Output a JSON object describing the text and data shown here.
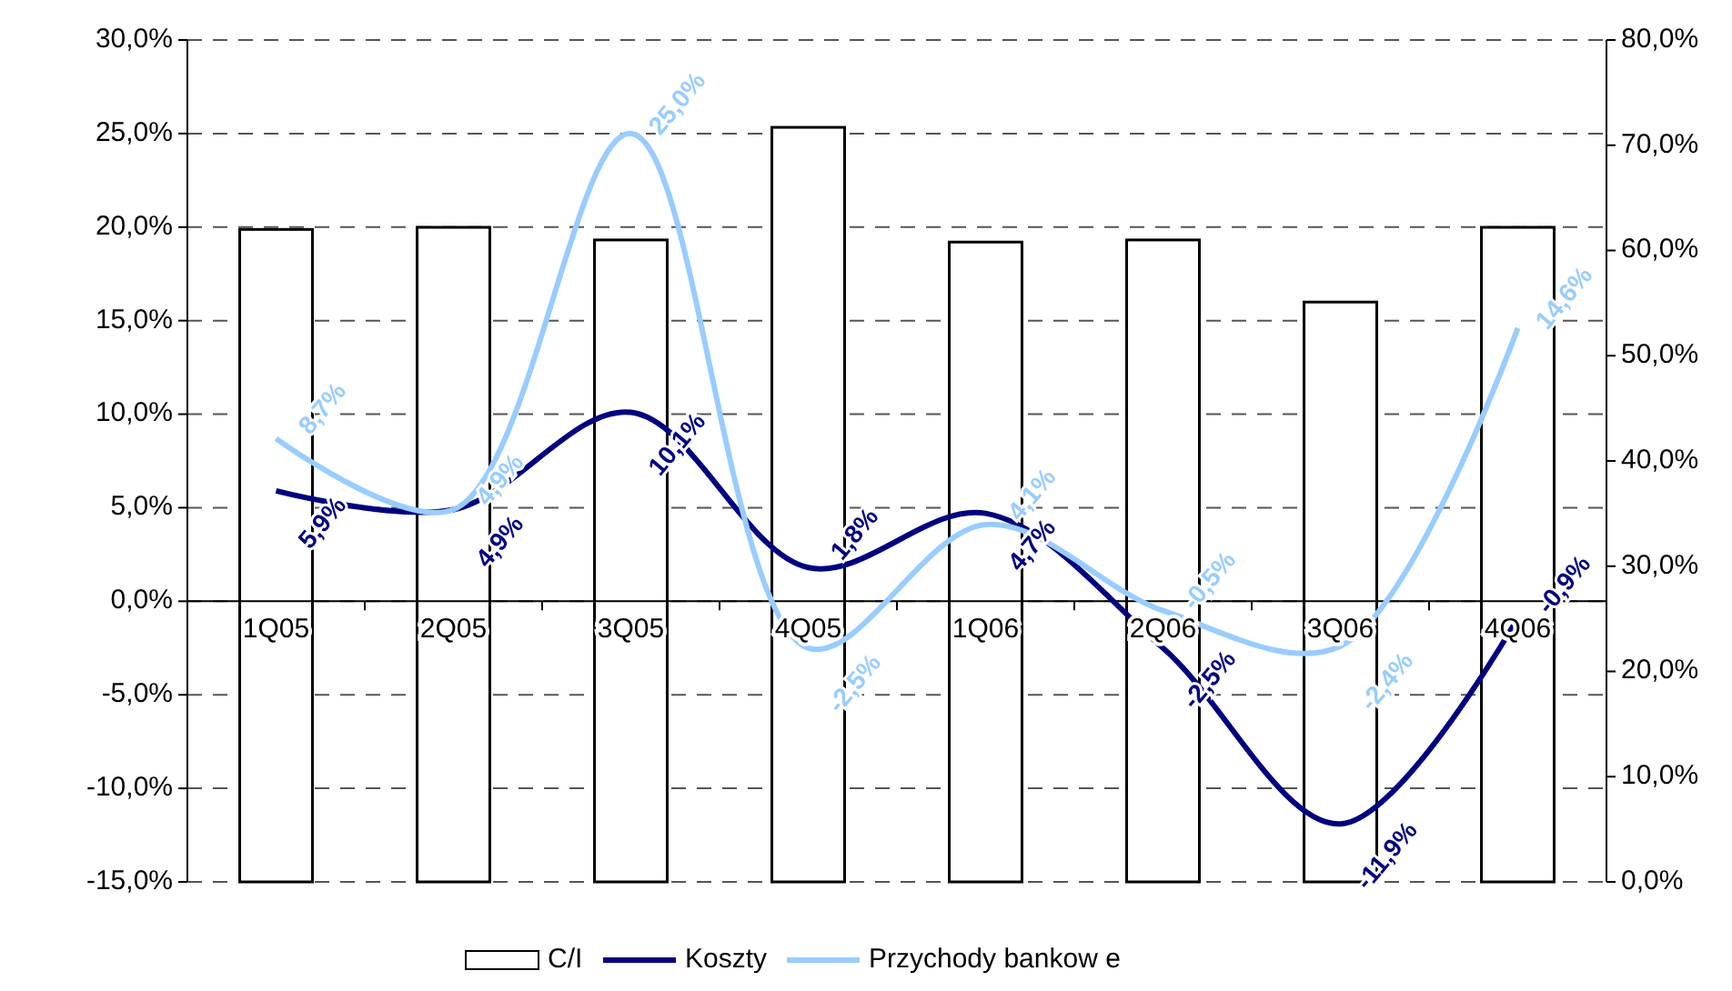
{
  "chart_data": {
    "type": "bar",
    "categories": [
      "1Q05",
      "2Q05",
      "3Q05",
      "4Q05",
      "1Q06",
      "2Q06",
      "3Q06",
      "4Q06"
    ],
    "series": [
      {
        "name": "C/I",
        "type": "bar",
        "axis": "y2",
        "color": "#ffffff",
        "values": [
          62.0,
          62.2,
          61.0,
          71.7,
          60.8,
          61.0,
          55.1,
          62.2
        ]
      },
      {
        "name": "Koszty",
        "type": "line",
        "color": "#000080",
        "values": [
          5.9,
          4.9,
          10.1,
          1.8,
          4.7,
          -2.5,
          -11.9,
          -0.9
        ],
        "value_labels": [
          "5,9%",
          "4,9%",
          "10,1%",
          "1,8%",
          "4,7%",
          "-2,5%",
          "-11,9%",
          "-0,9%"
        ]
      },
      {
        "name": "Przychody bankow e",
        "type": "line",
        "color": "#99ccff",
        "values": [
          8.7,
          4.9,
          25.0,
          -2.5,
          4.1,
          -0.5,
          -2.4,
          14.6
        ],
        "value_labels": [
          "8,7%",
          "4,9%",
          "25,0%",
          "-2,5%",
          "4,1%",
          "-0,5%",
          "-2,4%",
          "14,6%"
        ]
      }
    ],
    "ylim": [
      -15,
      30
    ],
    "yticks": [
      {
        "value": -15,
        "label": "-15,0%"
      },
      {
        "value": -10,
        "label": "-10,0%"
      },
      {
        "value": -5,
        "label": "-5,0%"
      },
      {
        "value": 0,
        "label": "0,0%"
      },
      {
        "value": 5,
        "label": "5,0%"
      },
      {
        "value": 10,
        "label": "10,0%"
      },
      {
        "value": 15,
        "label": "15,0%"
      },
      {
        "value": 20,
        "label": "20,0%"
      },
      {
        "value": 25,
        "label": "25,0%"
      },
      {
        "value": 30,
        "label": "30,0%"
      }
    ],
    "y2lim": [
      0,
      80
    ],
    "y2ticks": [
      {
        "value": 0,
        "label": "0,0%"
      },
      {
        "value": 10,
        "label": "10,0%"
      },
      {
        "value": 20,
        "label": "20,0%"
      },
      {
        "value": 30,
        "label": "30,0%"
      },
      {
        "value": 40,
        "label": "40,0%"
      },
      {
        "value": 50,
        "label": "50,0%"
      },
      {
        "value": 60,
        "label": "60,0%"
      },
      {
        "value": 70,
        "label": "70,0%"
      },
      {
        "value": 80,
        "label": "80,0%"
      }
    ],
    "grid": "y",
    "legend": "bottom",
    "marker": "none",
    "line_style": "solid"
  }
}
